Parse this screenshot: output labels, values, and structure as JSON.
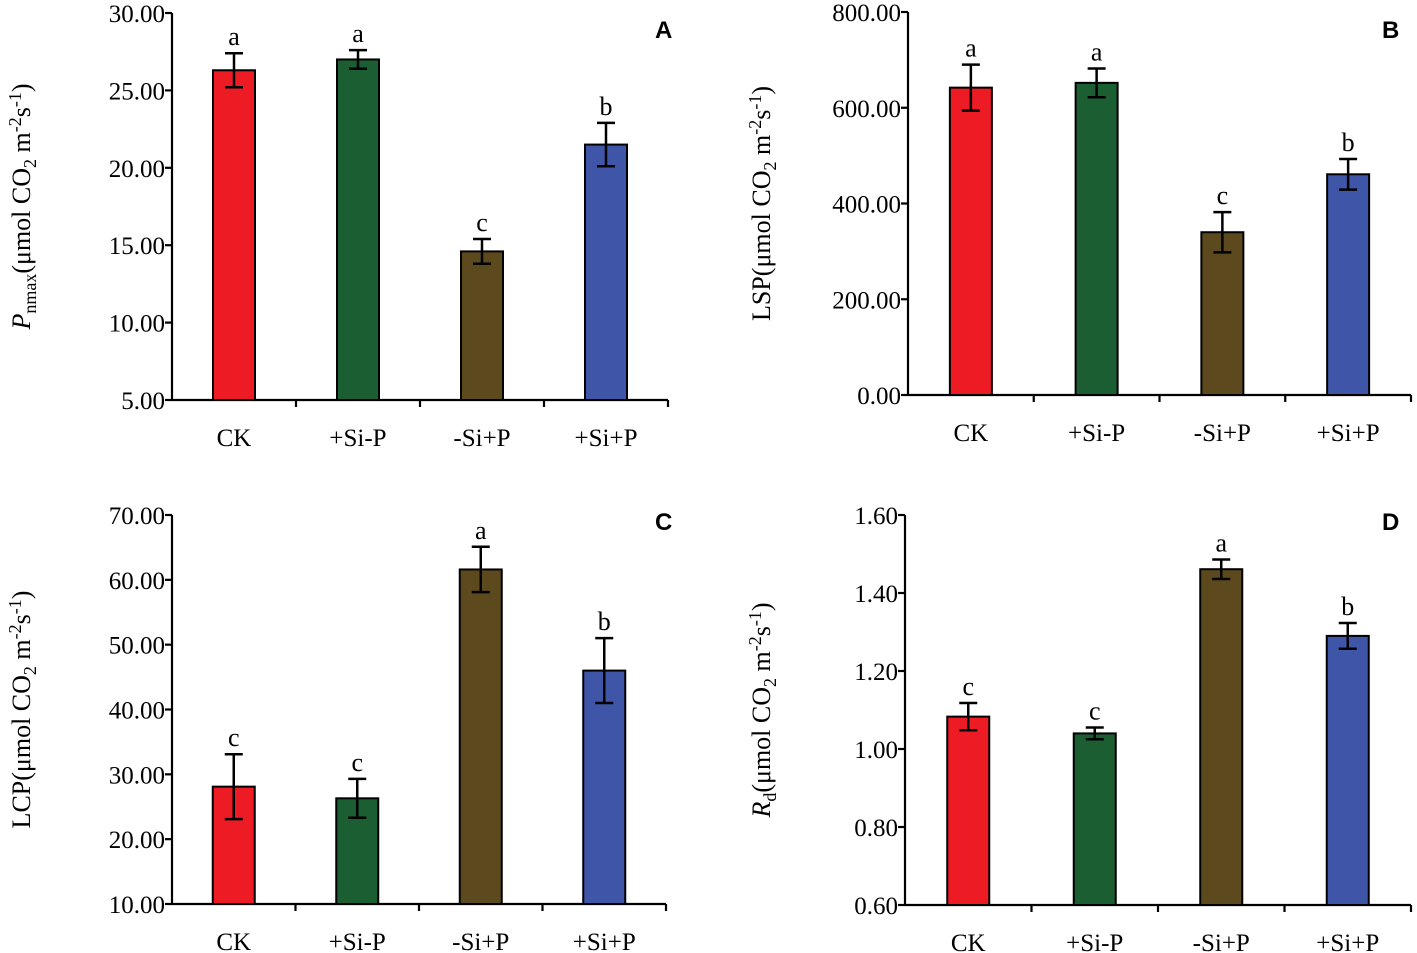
{
  "chart_data": [
    {
      "panel": "A",
      "type": "bar",
      "categories": [
        "CK",
        "+Si-P",
        "-Si+P",
        "+Si+P"
      ],
      "values": [
        26.3,
        27.0,
        14.6,
        21.5
      ],
      "errors": [
        1.1,
        0.6,
        0.8,
        1.4
      ],
      "letters": [
        "a",
        "a",
        "c",
        "b"
      ],
      "colors": [
        "#ed1c24",
        "#1a5e32",
        "#5c4a1e",
        "#3f56a8"
      ],
      "ylabel": {
        "main": "P",
        "sub": "nmax",
        "rest": "(μmol CO",
        "sub2": "2",
        "unit": " m",
        "sup1": "-2",
        "unit2": "s",
        "sup2": "-1",
        "close": ")",
        "italic_main": true
      },
      "ylim": [
        5,
        30
      ],
      "yticks": [
        "5.00",
        "10.00",
        "15.00",
        "20.00",
        "25.00",
        "30.00"
      ],
      "ytick_values": [
        5,
        10,
        15,
        20,
        25,
        30
      ]
    },
    {
      "panel": "B",
      "type": "bar",
      "categories": [
        "CK",
        "+Si-P",
        "-Si+P",
        "+Si+P"
      ],
      "values": [
        642,
        652,
        340,
        461
      ],
      "errors": [
        48,
        30,
        42,
        32
      ],
      "letters": [
        "a",
        "a",
        "c",
        "b"
      ],
      "colors": [
        "#ed1c24",
        "#1a5e32",
        "#5c4a1e",
        "#3f56a8"
      ],
      "ylabel": {
        "main": "LSP",
        "sub": "",
        "rest": "(μmol CO",
        "sub2": "2",
        "unit": " m",
        "sup1": "-2",
        "unit2": "s",
        "sup2": "-1",
        "close": ")",
        "italic_main": false
      },
      "ylim": [
        0,
        800
      ],
      "yticks": [
        "0.00",
        "200.00",
        "400.00",
        "600.00",
        "800.00"
      ],
      "ytick_values": [
        0,
        200,
        400,
        600,
        800
      ]
    },
    {
      "panel": "C",
      "type": "bar",
      "categories": [
        "CK",
        "+Si-P",
        "-Si+P",
        "+Si+P"
      ],
      "values": [
        28.1,
        26.3,
        61.6,
        46.0
      ],
      "errors": [
        5.0,
        3.0,
        3.5,
        5.0
      ],
      "letters": [
        "c",
        "c",
        "a",
        "b"
      ],
      "colors": [
        "#ed1c24",
        "#1a5e32",
        "#5c4a1e",
        "#3f56a8"
      ],
      "ylabel": {
        "main": "LCP",
        "sub": "",
        "rest": "(μmol CO",
        "sub2": "2",
        "unit": " m",
        "sup1": "-2",
        "unit2": "s",
        "sup2": "-1",
        "close": ")",
        "italic_main": false
      },
      "ylim": [
        10,
        70
      ],
      "yticks": [
        "10.00",
        "20.00",
        "30.00",
        "40.00",
        "50.00",
        "60.00",
        "70.00"
      ],
      "ytick_values": [
        10,
        20,
        30,
        40,
        50,
        60,
        70
      ]
    },
    {
      "panel": "D",
      "type": "bar",
      "categories": [
        "CK",
        "+Si-P",
        "-Si+P",
        "+Si+P"
      ],
      "values": [
        1.083,
        1.04,
        1.461,
        1.29
      ],
      "errors": [
        0.035,
        0.015,
        0.025,
        0.033
      ],
      "letters": [
        "c",
        "c",
        "a",
        "b"
      ],
      "colors": [
        "#ed1c24",
        "#1a5e32",
        "#5c4a1e",
        "#3f56a8"
      ],
      "ylabel": {
        "main": "R",
        "sub": "d",
        "rest": "(μmol CO",
        "sub2": "2",
        "unit": " m",
        "sup1": "-2",
        "unit2": "s",
        "sup2": "-1",
        "close": ")",
        "italic_main": true
      },
      "ylim": [
        0.6,
        1.6
      ],
      "yticks": [
        "0.60",
        "0.80",
        "1.00",
        "1.20",
        "1.40",
        "1.60"
      ],
      "ytick_values": [
        0.6,
        0.8,
        1.0,
        1.2,
        1.4,
        1.6
      ]
    }
  ]
}
